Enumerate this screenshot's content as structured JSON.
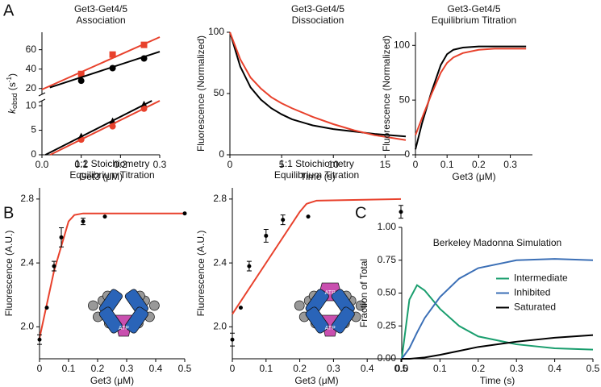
{
  "panel_labels": [
    "A",
    "B",
    "C"
  ],
  "chart_data": [
    {
      "type": "scatter",
      "title": "Get3-Get4/5",
      "subtitle": "Association",
      "ylabel": [
        "k",
        "obsd",
        " (s",
        "-1",
        ")"
      ],
      "xlabel": "Get3 (μM)",
      "xlim": [
        0,
        0.3
      ],
      "xticks": [
        {
          "value": 0,
          "label": "0.0"
        },
        0.1,
        0.2,
        0.3
      ],
      "ylim": [
        0,
        11
      ],
      "yticks": [
        0,
        5,
        10
      ],
      "y2lim": [
        14,
        78
      ],
      "y2ticks": [
        20,
        40,
        60
      ],
      "broken_axis": true,
      "series": [
        {
          "mode": "markers",
          "marker": "square",
          "color": "#e8412c",
          "axis": "y2",
          "x": [
            0.1,
            0.18,
            0.26
          ],
          "values": [
            35,
            55,
            65
          ]
        },
        {
          "mode": "markers",
          "marker": "circle",
          "color": "#000000",
          "axis": "y2",
          "x": [
            0.1,
            0.18,
            0.26
          ],
          "values": [
            28,
            41,
            51
          ]
        },
        {
          "mode": "lines",
          "color": "#e8412c",
          "axis": "y2",
          "x": [
            0,
            0.3
          ],
          "values": [
            19,
            73
          ]
        },
        {
          "mode": "lines",
          "color": "#000000",
          "axis": "y2",
          "x": [
            0.02,
            0.3
          ],
          "values": [
            21,
            58
          ]
        },
        {
          "mode": "markers",
          "marker": "triangle",
          "color": "#000000",
          "x": [
            0.1,
            0.18,
            0.26
          ],
          "values": [
            3.7,
            6.8,
            10.2
          ]
        },
        {
          "mode": "markers",
          "marker": "circle",
          "color": "#e8412c",
          "x": [
            0.1,
            0.18,
            0.26
          ],
          "values": [
            3.1,
            5.8,
            9.4
          ]
        },
        {
          "mode": "lines",
          "color": "#000000",
          "x": [
            0.009,
            0.28
          ],
          "values": [
            0,
            11
          ]
        },
        {
          "mode": "lines",
          "color": "#e8412c",
          "x": [
            0.021,
            0.3
          ],
          "values": [
            0,
            11
          ]
        }
      ]
    },
    {
      "type": "line",
      "title": "Get3-Get4/5",
      "subtitle": "Dissociation",
      "ylabel": "Fluorescence (Normalized)",
      "xlabel": "Time (s)",
      "xlim": [
        0,
        17
      ],
      "xticks": [
        0,
        5,
        10,
        15
      ],
      "ylim": [
        0,
        100
      ],
      "yticks": [
        0,
        50,
        100
      ],
      "series": [
        {
          "mode": "lines",
          "color": "#000000",
          "x": [
            0,
            1,
            2,
            3,
            4,
            5,
            6,
            8,
            10,
            12,
            14,
            17
          ],
          "values": [
            100,
            72,
            55,
            45,
            38,
            33,
            29,
            24,
            21,
            19,
            17,
            15
          ]
        },
        {
          "mode": "lines",
          "color": "#e8412c",
          "x": [
            0,
            1,
            2,
            3,
            4,
            5,
            6,
            8,
            10,
            12,
            14,
            17
          ],
          "values": [
            100,
            78,
            63,
            54,
            47,
            42,
            38,
            31,
            25,
            20,
            16,
            12
          ]
        }
      ]
    },
    {
      "type": "line",
      "title": "Get3-Get4/5",
      "subtitle": "Equilibrium Titration",
      "ylabel": "Fluorescence (Normalized)",
      "xlabel": "Get3 (μM)",
      "xlim": [
        0,
        0.37
      ],
      "xticks": [
        0,
        0.1,
        0.2,
        0.3
      ],
      "ylim": [
        0,
        112
      ],
      "yticks": [
        0,
        50,
        100
      ],
      "series": [
        {
          "mode": "lines",
          "color": "#000000",
          "x": [
            0,
            0.02,
            0.05,
            0.08,
            0.1,
            0.12,
            0.15,
            0.2,
            0.25,
            0.35
          ],
          "values": [
            5,
            28,
            57,
            82,
            92,
            96,
            98,
            99,
            99,
            99
          ]
        },
        {
          "mode": "lines",
          "color": "#e8412c",
          "x": [
            0,
            0.02,
            0.05,
            0.08,
            0.1,
            0.12,
            0.15,
            0.2,
            0.25,
            0.35
          ],
          "values": [
            18,
            33,
            55,
            75,
            84,
            89,
            93,
            96,
            97,
            97
          ]
        }
      ]
    },
    {
      "type": "scatter",
      "title": "1:2 Stoichiometry",
      "subtitle": "Equilibrium Titration",
      "ylabel": "Fluorescence (A.U.)",
      "xlabel": "Get3 (μM)",
      "xlim": [
        0,
        0.5
      ],
      "xticks": [
        0,
        0.1,
        0.2,
        0.3,
        0.4,
        0.5
      ],
      "ylim": [
        1.8,
        2.87
      ],
      "yticks": [
        {
          "value": 2,
          "label": "2.0"
        },
        2.4,
        2.8
      ],
      "annotations": [
        "ATP"
      ],
      "series": [
        {
          "mode": "lines",
          "color": "#e8412c",
          "x": [
            0,
            0.05,
            0.1,
            0.12,
            0.15,
            0.2,
            0.5
          ],
          "values": [
            1.93,
            2.35,
            2.66,
            2.7,
            2.71,
            2.71,
            2.71
          ]
        },
        {
          "mode": "markers",
          "marker": "circle",
          "color": "#000000",
          "x": [
            0,
            0.025,
            0.05,
            0.075,
            0.15,
            0.225,
            0.5
          ],
          "values": [
            1.92,
            2.12,
            2.38,
            2.56,
            2.66,
            2.69,
            2.71
          ],
          "errors": [
            0.03,
            null,
            0.03,
            0.06,
            0.02,
            null,
            null
          ]
        }
      ]
    },
    {
      "type": "scatter",
      "title": "1:1 Stoichiometry",
      "subtitle": "Equilibrium Titration",
      "ylabel": "Fluorescence (A.U.)",
      "xlabel": "Get3 (μM)",
      "xlim": [
        0,
        0.5
      ],
      "xticks": [
        0,
        0.1,
        0.2,
        0.3,
        0.4,
        0.5
      ],
      "ylim": [
        1.8,
        2.87
      ],
      "yticks": [
        {
          "value": 2,
          "label": "2.0"
        },
        2.4,
        2.8
      ],
      "annotations": [
        "ATP",
        "ATP"
      ],
      "series": [
        {
          "mode": "lines",
          "color": "#e8412c",
          "x": [
            0,
            0.1,
            0.2,
            0.22,
            0.25,
            0.5
          ],
          "values": [
            2.08,
            2.4,
            2.72,
            2.77,
            2.79,
            2.8
          ]
        },
        {
          "mode": "markers",
          "marker": "circle",
          "color": "#000000",
          "x": [
            0,
            0.025,
            0.05,
            0.1,
            0.15,
            0.225,
            0.5
          ],
          "values": [
            1.92,
            2.12,
            2.38,
            2.57,
            2.67,
            2.69,
            2.72
          ],
          "errors": [
            0.04,
            null,
            0.03,
            0.04,
            0.03,
            null,
            0.04
          ]
        }
      ]
    },
    {
      "type": "line",
      "title": "Berkeley Madonna Simulation",
      "ylabel": "Fraction of Total",
      "xlabel": "Time (s)",
      "xlim": [
        0,
        0.5
      ],
      "xticks": [
        {
          "value": 0,
          "label": "0.0"
        },
        0.1,
        0.2,
        0.3,
        0.4,
        0.5
      ],
      "ylim": [
        0,
        1
      ],
      "yticks": [
        {
          "value": 0,
          "label": "0.00"
        },
        0.25,
        {
          "value": 0.5,
          "label": "0.50"
        },
        0.75,
        {
          "value": 1,
          "label": "1.00"
        }
      ],
      "legend": "right",
      "series": [
        {
          "name": "Intermediate",
          "mode": "lines",
          "color": "#1a9e6e",
          "x": [
            0,
            0.02,
            0.04,
            0.06,
            0.1,
            0.15,
            0.2,
            0.3,
            0.4,
            0.5
          ],
          "values": [
            0,
            0.45,
            0.56,
            0.52,
            0.38,
            0.25,
            0.17,
            0.11,
            0.08,
            0.07
          ]
        },
        {
          "name": "Inhibited",
          "mode": "lines",
          "color": "#3b6fb6",
          "x": [
            0,
            0.02,
            0.04,
            0.06,
            0.1,
            0.15,
            0.2,
            0.3,
            0.4,
            0.5
          ],
          "values": [
            0,
            0.08,
            0.2,
            0.31,
            0.47,
            0.61,
            0.69,
            0.75,
            0.76,
            0.75
          ]
        },
        {
          "name": "Saturated",
          "mode": "lines",
          "color": "#000000",
          "x": [
            0,
            0.02,
            0.04,
            0.06,
            0.1,
            0.15,
            0.2,
            0.3,
            0.4,
            0.5
          ],
          "values": [
            0,
            0,
            0.005,
            0.01,
            0.03,
            0.06,
            0.09,
            0.13,
            0.16,
            0.18
          ]
        }
      ]
    }
  ]
}
